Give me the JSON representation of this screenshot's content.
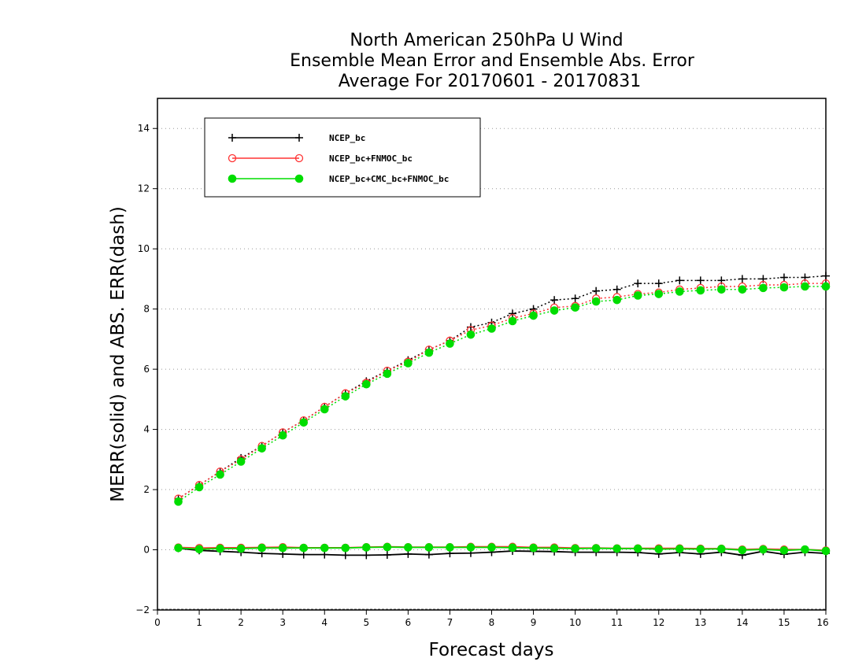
{
  "chart_data": {
    "type": "line",
    "title": [
      "North American 250hPa U Wind",
      "Ensemble Mean Error and Ensemble Abs. Error",
      "Average For 20170601 - 20170831"
    ],
    "xlabel": "Forecast days",
    "ylabel": "MERR(solid) and ABS. ERR(dash)",
    "xlim": [
      0,
      16
    ],
    "ylim": [
      -2,
      15
    ],
    "xticks": [
      0,
      1,
      2,
      3,
      4,
      5,
      6,
      7,
      8,
      9,
      10,
      11,
      12,
      13,
      14,
      15,
      16
    ],
    "yticks": [
      -2,
      0,
      2,
      4,
      6,
      8,
      10,
      12,
      14
    ],
    "grid": "horizontal dotted",
    "legend_position": "top-left",
    "x": [
      0.5,
      1.0,
      1.5,
      2.0,
      2.5,
      3.0,
      3.5,
      4.0,
      4.5,
      5.0,
      5.5,
      6.0,
      6.5,
      7.0,
      7.5,
      8.0,
      8.5,
      9.0,
      9.5,
      10.0,
      10.5,
      11.0,
      11.5,
      12.0,
      12.5,
      13.0,
      13.5,
      14.0,
      14.5,
      15.0,
      15.5,
      16.0
    ],
    "series": [
      {
        "name": "NCEP_bc",
        "color": "#000000",
        "marker": "plus",
        "abs_err": [
          1.7,
          2.15,
          2.6,
          3.05,
          3.45,
          3.9,
          4.3,
          4.75,
          5.2,
          5.6,
          5.95,
          6.3,
          6.65,
          6.95,
          7.4,
          7.55,
          7.85,
          8.0,
          8.3,
          8.35,
          8.6,
          8.65,
          8.85,
          8.85,
          8.95,
          8.95,
          8.95,
          9.0,
          9.0,
          9.05,
          9.05,
          9.1
        ],
        "mean_err": [
          0.05,
          -0.02,
          -0.05,
          -0.08,
          -0.12,
          -0.14,
          -0.16,
          -0.16,
          -0.18,
          -0.18,
          -0.17,
          -0.14,
          -0.16,
          -0.12,
          -0.11,
          -0.08,
          -0.04,
          -0.05,
          -0.06,
          -0.08,
          -0.08,
          -0.08,
          -0.09,
          -0.14,
          -0.09,
          -0.14,
          -0.08,
          -0.18,
          -0.05,
          -0.15,
          -0.08,
          -0.12
        ]
      },
      {
        "name": "NCEP_bc+FNMOC_bc",
        "color": "#ff3333",
        "marker": "open-circle",
        "abs_err": [
          1.7,
          2.15,
          2.6,
          3.0,
          3.45,
          3.9,
          4.3,
          4.75,
          5.2,
          5.55,
          5.95,
          6.25,
          6.65,
          6.95,
          7.3,
          7.45,
          7.7,
          7.85,
          8.05,
          8.1,
          8.35,
          8.4,
          8.5,
          8.55,
          8.65,
          8.7,
          8.75,
          8.75,
          8.8,
          8.8,
          8.85,
          8.85
        ],
        "mean_err": [
          0.08,
          0.06,
          0.07,
          0.07,
          0.08,
          0.09,
          0.07,
          0.07,
          0.07,
          0.09,
          0.1,
          0.09,
          0.09,
          0.09,
          0.1,
          0.1,
          0.1,
          0.08,
          0.08,
          0.06,
          0.06,
          0.05,
          0.05,
          0.05,
          0.05,
          0.04,
          0.04,
          0.01,
          0.03,
          0.01,
          0.01,
          -0.02
        ]
      },
      {
        "name": "NCEP_bc+CMC_bc+FNMOC_bc",
        "color": "#00dd00",
        "marker": "filled-circle",
        "abs_err": [
          1.6,
          2.08,
          2.5,
          2.93,
          3.37,
          3.8,
          4.23,
          4.67,
          5.1,
          5.5,
          5.85,
          6.2,
          6.55,
          6.85,
          7.15,
          7.35,
          7.6,
          7.78,
          7.95,
          8.05,
          8.25,
          8.3,
          8.45,
          8.5,
          8.58,
          8.62,
          8.65,
          8.65,
          8.7,
          8.72,
          8.75,
          8.75
        ],
        "mean_err": [
          0.06,
          0.02,
          0.04,
          0.04,
          0.06,
          0.06,
          0.06,
          0.06,
          0.06,
          0.08,
          0.09,
          0.08,
          0.08,
          0.08,
          0.08,
          0.08,
          0.07,
          0.06,
          0.05,
          0.04,
          0.05,
          0.04,
          0.04,
          0.02,
          0.03,
          0.02,
          0.03,
          -0.01,
          0.01,
          -0.02,
          0.01,
          -0.04
        ]
      }
    ]
  }
}
